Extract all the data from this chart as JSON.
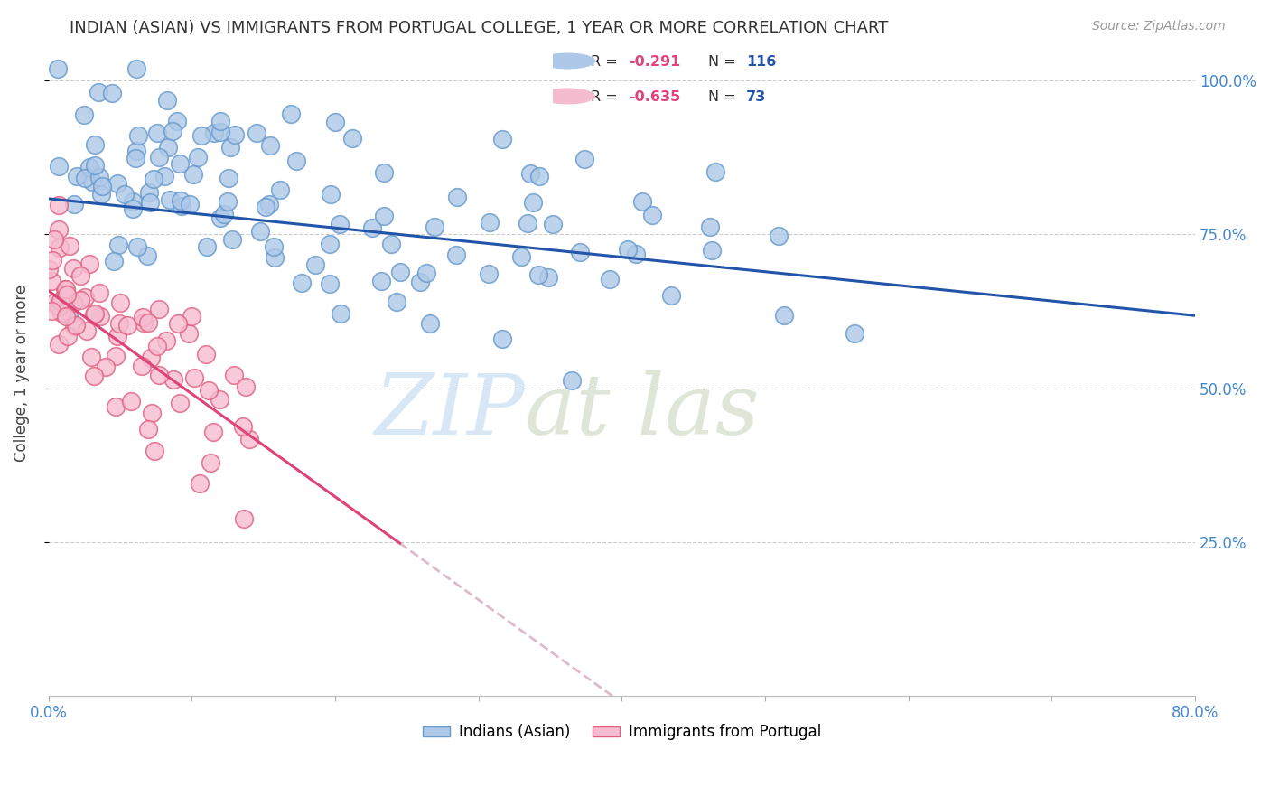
{
  "title": "INDIAN (ASIAN) VS IMMIGRANTS FROM PORTUGAL COLLEGE, 1 YEAR OR MORE CORRELATION CHART",
  "source": "Source: ZipAtlas.com",
  "ylabel": "College, 1 year or more",
  "xlim": [
    0.0,
    0.8
  ],
  "ylim": [
    0.0,
    1.05
  ],
  "ytick_vals": [
    0.25,
    0.5,
    0.75,
    1.0
  ],
  "ytick_labels": [
    "25.0%",
    "50.0%",
    "75.0%",
    "100.0%"
  ],
  "xtick_vals": [
    0.0,
    0.1,
    0.2,
    0.3,
    0.4,
    0.5,
    0.6,
    0.7,
    0.8
  ],
  "xtick_labels": [
    "0.0%",
    "",
    "",
    "",
    "",
    "",
    "",
    "",
    "80.0%"
  ],
  "series1_color": "#adc8e8",
  "series1_edge": "#6699cc",
  "series2_color": "#f5bcd0",
  "series2_edge": "#e06080",
  "line1_color": "#2255aa",
  "line2_color": "#dd4477",
  "line2_ext_color": "#ddbbcc",
  "R1": -0.291,
  "N1": 116,
  "R2": -0.635,
  "N2": 73,
  "legend_series1": "Indians (Asian)",
  "legend_series2": "Immigrants from Portugal",
  "watermark": "ZIPat las",
  "background_color": "#ffffff",
  "grid_color": "#cccccc",
  "title_fontsize": 13,
  "axis_tick_color": "#4488cc",
  "ylabel_color": "#444444",
  "title_color": "#333333",
  "source_color": "#999999",
  "legend_R_color": "#dd4477",
  "legend_N_color": "#2255aa",
  "legend_text_color": "#333333",
  "line1_y_start": 0.808,
  "line1_y_end": 0.618,
  "line2_y_start": 0.658,
  "line2_y_end": 0.248,
  "line2_solid_end_x": 0.245,
  "line2_ext_end_x": 0.52
}
